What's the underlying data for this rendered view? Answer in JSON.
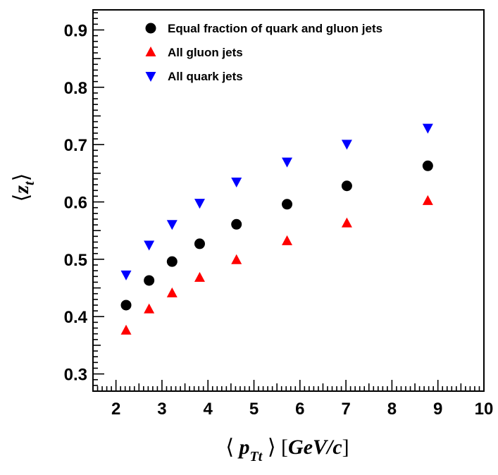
{
  "chart_data": {
    "type": "scatter",
    "xlabel": "⟨ p_Tt ⟩ [GeV/c]",
    "ylabel": "⟨z_t⟩",
    "xlim": [
      1.5,
      10
    ],
    "ylim": [
      0.27,
      0.935
    ],
    "x_ticks": [
      "2",
      "3",
      "4",
      "5",
      "6",
      "7",
      "8",
      "9",
      "10"
    ],
    "y_ticks": [
      "0.3",
      "0.4",
      "0.5",
      "0.6",
      "0.7",
      "0.8",
      "0.9"
    ],
    "grid": false,
    "legend_position": "top",
    "series": [
      {
        "name": "Equal fraction of quark and gluon jets",
        "marker": "circle",
        "color": "#000000",
        "x": [
          2.22,
          2.72,
          3.22,
          3.82,
          4.62,
          5.72,
          7.02,
          8.78
        ],
        "y": [
          0.42,
          0.463,
          0.496,
          0.527,
          0.561,
          0.596,
          0.628,
          0.663
        ]
      },
      {
        "name": "All gluon jets",
        "marker": "triangle-up",
        "color": "#ff0000",
        "x": [
          2.22,
          2.72,
          3.22,
          3.82,
          4.62,
          5.72,
          7.02,
          8.78
        ],
        "y": [
          0.376,
          0.413,
          0.441,
          0.468,
          0.499,
          0.532,
          0.563,
          0.602
        ]
      },
      {
        "name": "All quark jets",
        "marker": "triangle-down",
        "color": "#0000ff",
        "x": [
          2.22,
          2.72,
          3.22,
          3.82,
          4.62,
          5.72,
          7.02,
          8.78
        ],
        "y": [
          0.473,
          0.525,
          0.561,
          0.598,
          0.635,
          0.67,
          0.701,
          0.729
        ]
      }
    ]
  }
}
